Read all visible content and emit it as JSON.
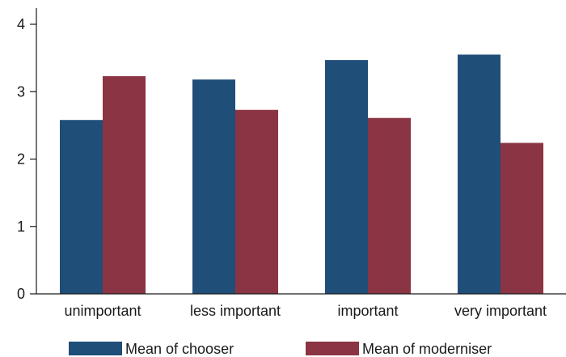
{
  "chart_data": {
    "type": "bar",
    "categories": [
      "unimportant",
      "less important",
      "important",
      "very important"
    ],
    "series": [
      {
        "name": "Mean of chooser",
        "color": "#1f4e79",
        "values": [
          2.58,
          3.18,
          3.47,
          3.55
        ]
      },
      {
        "name": "Mean of moderniser",
        "color": "#8b3443",
        "values": [
          3.23,
          2.73,
          2.61,
          2.24
        ]
      }
    ],
    "ylim": [
      0,
      4
    ],
    "yticks": [
      0,
      1,
      2,
      3,
      4
    ],
    "grid": false,
    "legend_position": "bottom"
  }
}
